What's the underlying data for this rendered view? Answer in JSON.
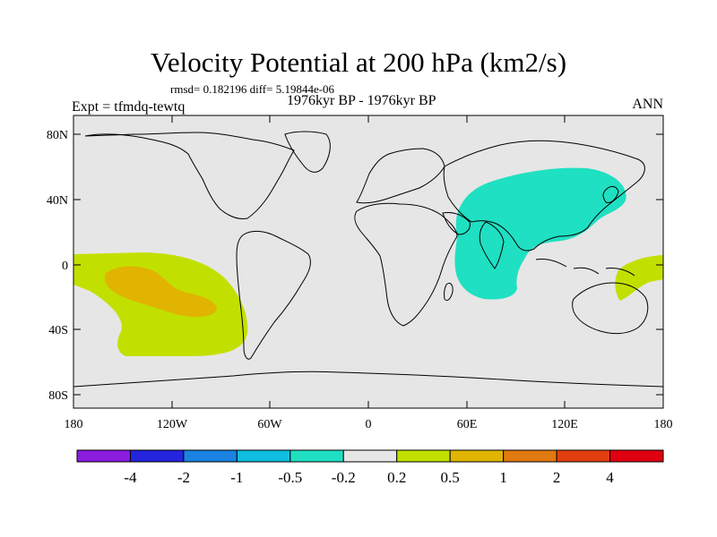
{
  "title": "Velocity Potential at 200 hPa (km2/s)",
  "stats": "rmsd= 0.182196 diff= 5.19844e-06",
  "period": "1976kyr BP - 1976kyr BP",
  "expt": "Expt = tfmdq-tewtq",
  "season": "ANN",
  "y_ticks": [
    "80N",
    "40N",
    "0",
    "40S",
    "80S"
  ],
  "x_ticks": [
    "180",
    "120W",
    "60W",
    "0",
    "60E",
    "120E",
    "180"
  ],
  "colorbar": {
    "colors": [
      "#8b1ce0",
      "#2424dc",
      "#1a82e0",
      "#10bde0",
      "#1fe0c2",
      "#e6e6e6",
      "#c2e000",
      "#e0b400",
      "#e07a10",
      "#e04010",
      "#e00010"
    ],
    "labels": [
      "-4",
      "-2",
      "-1",
      "-0.5",
      "-0.2",
      "0.2",
      "0.5",
      "1",
      "2",
      "4"
    ]
  },
  "colors": {
    "ocean_land": "#e6e6e6",
    "level_cyan": "#1fe0c2",
    "level_yellowgreen": "#c2e000",
    "level_orange": "#e0b400"
  }
}
